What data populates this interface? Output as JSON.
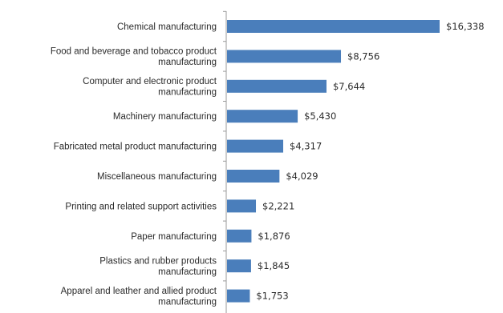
{
  "chart_data": {
    "type": "bar",
    "orientation": "horizontal",
    "categories": [
      [
        "Chemical manufacturing"
      ],
      [
        "Food and beverage and tobacco product",
        "manufacturing"
      ],
      [
        "Computer and electronic product",
        "manufacturing"
      ],
      [
        "Machinery manufacturing"
      ],
      [
        "Fabricated metal product manufacturing"
      ],
      [
        "Miscellaneous manufacturing"
      ],
      [
        "Printing and related support activities"
      ],
      [
        "Paper manufacturing"
      ],
      [
        "Plastics and rubber products",
        "manufacturing"
      ],
      [
        "Apparel and leather and allied product",
        "manufacturing"
      ]
    ],
    "values": [
      16338,
      8756,
      7644,
      5430,
      4317,
      4029,
      2221,
      1876,
      1845,
      1753
    ],
    "value_labels": [
      "$16,338",
      "$8,756",
      "$7,644",
      "$5,430",
      "$4,317",
      "$4,029",
      "$2,221",
      "$1,876",
      "$1,845",
      "$1,753"
    ],
    "bar_color": "#4a7ebb",
    "axis_color": "#9a9a9a",
    "grid": false,
    "legend": "none"
  }
}
